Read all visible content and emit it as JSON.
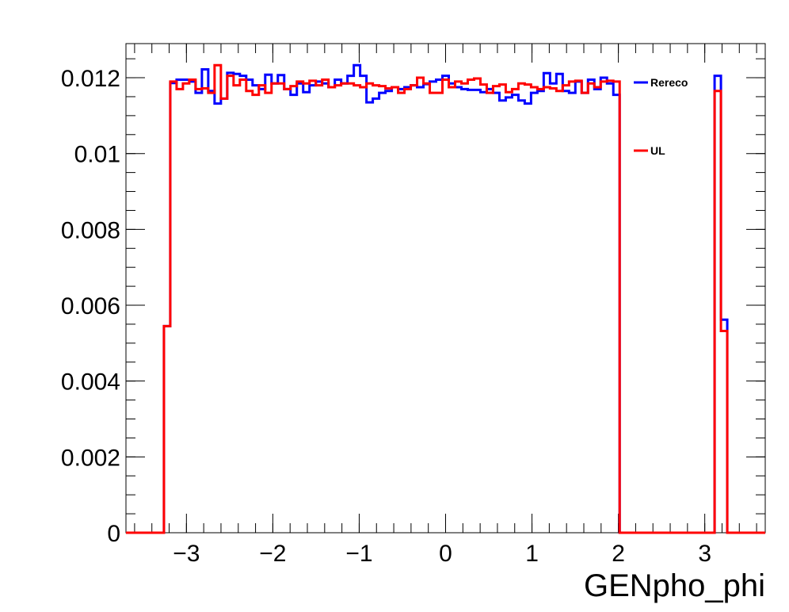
{
  "chart_data": {
    "type": "line",
    "title": "",
    "xlabel": "GENpho_phi",
    "ylabel": "",
    "xlim": [
      -3.7,
      3.7
    ],
    "ylim": [
      0,
      0.0129
    ],
    "x_ticks": [
      -3,
      -2,
      -1,
      0,
      1,
      2,
      3
    ],
    "x_tick_labels": [
      "−3",
      "−2",
      "−1",
      "0",
      "1",
      "2",
      "3"
    ],
    "y_ticks": [
      0,
      0.002,
      0.004,
      0.006,
      0.008,
      0.01,
      0.012
    ],
    "y_tick_labels": [
      "0",
      "0.002",
      "0.004",
      "0.006",
      "0.008",
      "0.01",
      "0.012"
    ],
    "grid": false,
    "legend_position": "top-right",
    "bin_low": -3.7,
    "bin_high": 3.7,
    "series": [
      {
        "name": "Rereco",
        "color": "#0000ff",
        "values": [
          0,
          0,
          0,
          0,
          0,
          0,
          0.00545,
          0.01186,
          0.01195,
          0.01195,
          0.0119,
          0.0116,
          0.01222,
          0.01165,
          0.01132,
          0.01145,
          0.01213,
          0.0121,
          0.01205,
          0.01195,
          0.0118,
          0.0117,
          0.01208,
          0.01185,
          0.01207,
          0.0117,
          0.01155,
          0.01185,
          0.01162,
          0.0118,
          0.0119,
          0.01185,
          0.01175,
          0.01195,
          0.01185,
          0.01205,
          0.01233,
          0.01205,
          0.01135,
          0.01145,
          0.0116,
          0.01165,
          0.01175,
          0.0117,
          0.01175,
          0.0118,
          0.01175,
          0.01183,
          0.0119,
          0.01195,
          0.01205,
          0.01185,
          0.01175,
          0.0117,
          0.01168,
          0.01168,
          0.01162,
          0.0117,
          0.0116,
          0.0114,
          0.01148,
          0.01155,
          0.0114,
          0.01132,
          0.0116,
          0.01165,
          0.01212,
          0.01185,
          0.0121,
          0.01165,
          0.0116,
          0.0119,
          0.0116,
          0.01195,
          0.0117,
          0.012,
          0.01185,
          0.01155,
          0,
          0,
          0,
          0,
          0,
          0,
          0,
          0,
          0,
          0,
          0,
          0,
          0,
          0,
          0,
          0.01205,
          0.00562,
          0,
          0,
          0,
          0,
          0,
          0
        ]
      },
      {
        "name": "UL",
        "color": "#ff0000",
        "values": [
          0,
          0,
          0,
          0,
          0,
          0,
          0.00545,
          0.0119,
          0.0117,
          0.01185,
          0.01195,
          0.0117,
          0.01172,
          0.0116,
          0.01233,
          0.01145,
          0.01205,
          0.0118,
          0.01195,
          0.01165,
          0.01155,
          0.0118,
          0.0116,
          0.01185,
          0.01185,
          0.0117,
          0.01178,
          0.0119,
          0.01185,
          0.01192,
          0.0118,
          0.01195,
          0.01175,
          0.0118,
          0.01185,
          0.01185,
          0.0118,
          0.01175,
          0.01185,
          0.0118,
          0.01178,
          0.01172,
          0.01175,
          0.0116,
          0.0117,
          0.0118,
          0.012,
          0.01185,
          0.0116,
          0.0116,
          0.01195,
          0.01175,
          0.0119,
          0.01185,
          0.01195,
          0.01198,
          0.01182,
          0.0116,
          0.01178,
          0.01182,
          0.01162,
          0.0117,
          0.01185,
          0.01182,
          0.01175,
          0.0117,
          0.01175,
          0.01172,
          0.01165,
          0.0118,
          0.0119,
          0.01192,
          0.0116,
          0.01185,
          0.01175,
          0.0119,
          0.01192,
          0.0119,
          0,
          0,
          0,
          0,
          0,
          0,
          0,
          0,
          0,
          0,
          0,
          0,
          0,
          0,
          0,
          0.01165,
          0.00532,
          0,
          0,
          0,
          0,
          0,
          0
        ]
      }
    ]
  }
}
